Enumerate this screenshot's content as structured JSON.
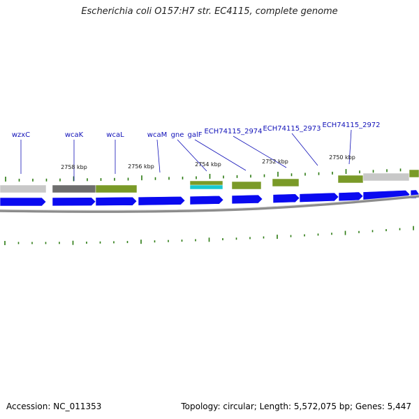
{
  "title": "Escherichia coli O157:H7 str. EC4115, complete genome",
  "footer": {
    "accession": "Accession: NC_011353",
    "summary": "Topology: circular; Length: 5,572,075 bp; Genes: 5,447"
  },
  "colors": {
    "forward_cds": "#0a0af0",
    "feature_grey": "#c8c8c8",
    "feature_darkgrey": "#6e6e6e",
    "feature_olive": "#7a9a28",
    "feature_cyan": "#18c8d0",
    "tick": "#2a7a10",
    "label": "#1010b8",
    "backbone": "#8c8c8c"
  },
  "gene_labels": [
    "wzxC",
    "wcaK",
    "wcaL",
    "wcaM",
    "gne",
    "galF",
    "ECH74115_2974",
    "ECH74115_2973",
    "ECH74115_2972"
  ],
  "kbp_ticks": [
    "2758 kbp",
    "2756 kbp",
    "2754 kbp",
    "2752 kbp",
    "2750 kbp"
  ]
}
